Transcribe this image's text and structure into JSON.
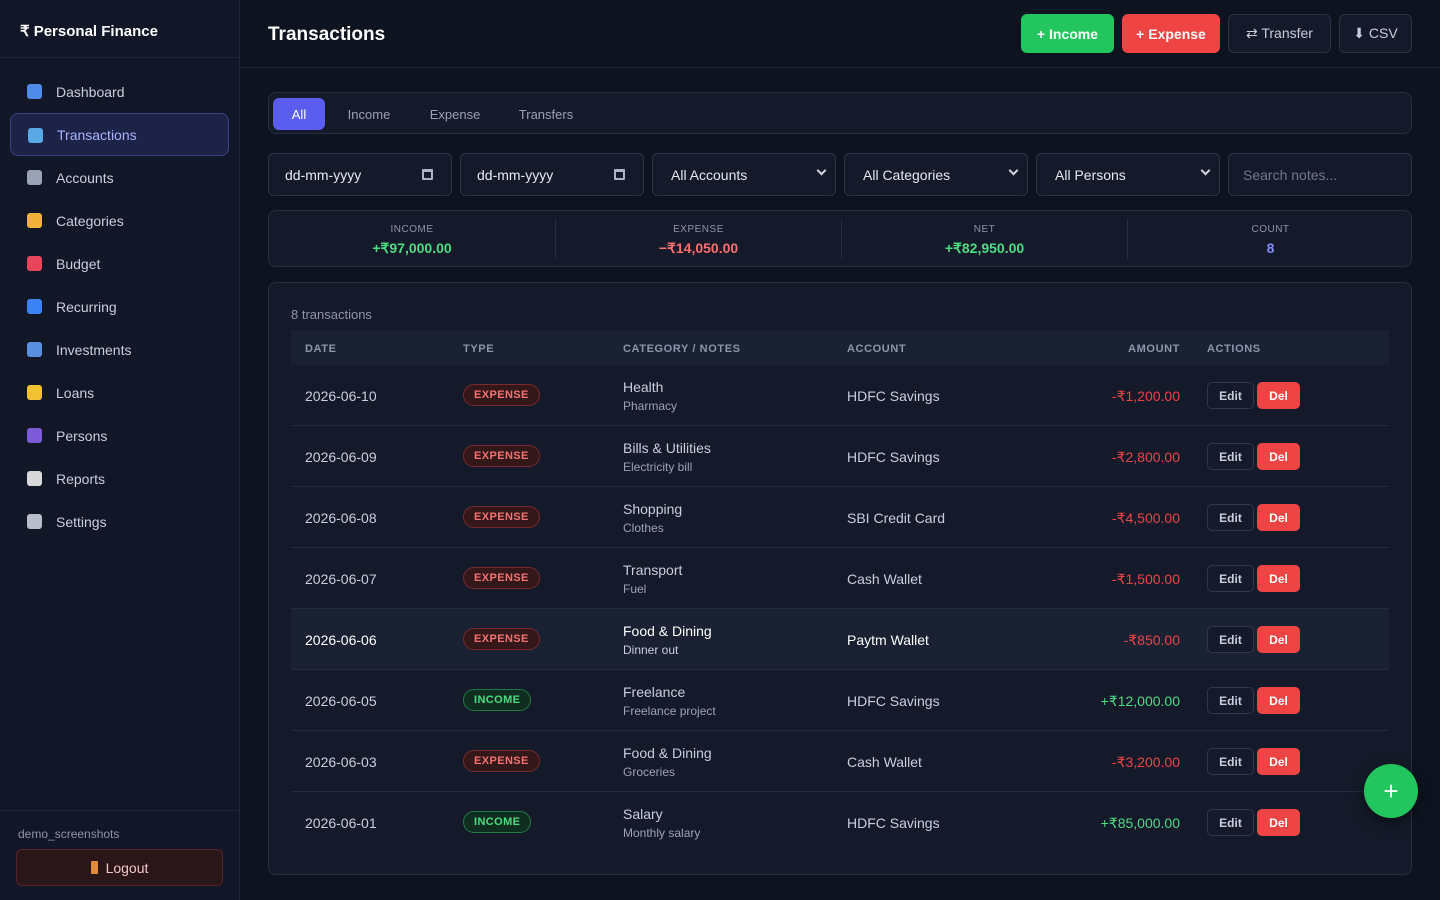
{
  "sidebar": {
    "brand": "₹ Personal Finance",
    "nav": [
      "Dashboard",
      "Transactions",
      "Accounts",
      "Categories",
      "Budget",
      "Recurring",
      "Investments",
      "Loans",
      "Persons",
      "Reports",
      "Settings"
    ],
    "active": 1,
    "user": "demo_screenshots",
    "logout": "Logout"
  },
  "header": {
    "title": "Transactions",
    "buttons": [
      "+ Income",
      "+ Expense",
      "⇄ Transfer",
      "⬇ CSV"
    ]
  },
  "tabs": {
    "items": [
      "All",
      "Income",
      "Expense",
      "Transfers"
    ],
    "active": 0
  },
  "filters": {
    "dates": [
      "dd-mm-yyyy",
      "dd-mm-yyyy"
    ],
    "selects": [
      "All Accounts",
      "All Categories",
      "All Persons"
    ],
    "search": "Search notes..."
  },
  "summary": [
    {
      "label": "INCOME",
      "value": "+₹97,000.00"
    },
    {
      "label": "EXPENSE",
      "value": "−₹14,050.00"
    },
    {
      "label": "NET",
      "value": "+₹82,950.00"
    },
    {
      "label": "COUNT",
      "value": "8"
    }
  ],
  "table": {
    "caption": "8 transactions",
    "columns": [
      "DATE",
      "TYPE",
      "CATEGORY / NOTES",
      "ACCOUNT",
      "AMOUNT",
      "ACTIONS"
    ],
    "rows": [
      {
        "date": "2026-06-10",
        "type": "EXPENSE",
        "category": "Health",
        "notes": "Pharmacy",
        "account": "HDFC Savings",
        "amount": "-₹1,200.00",
        "actions": [
          "Edit",
          "Del"
        ]
      },
      {
        "date": "2026-06-09",
        "type": "EXPENSE",
        "category": "Bills & Utilities",
        "notes": "Electricity bill",
        "account": "HDFC Savings",
        "amount": "-₹2,800.00",
        "actions": [
          "Edit",
          "Del"
        ]
      },
      {
        "date": "2026-06-08",
        "type": "EXPENSE",
        "category": "Shopping",
        "notes": "Clothes",
        "account": "SBI Credit Card",
        "amount": "-₹4,500.00",
        "actions": [
          "Edit",
          "Del"
        ]
      },
      {
        "date": "2026-06-07",
        "type": "EXPENSE",
        "category": "Transport",
        "notes": "Fuel",
        "account": "Cash Wallet",
        "amount": "-₹1,500.00",
        "actions": [
          "Edit",
          "Del"
        ]
      },
      {
        "date": "2026-06-06",
        "type": "EXPENSE",
        "category": "Food & Dining",
        "notes": "Dinner out",
        "account": "Paytm Wallet",
        "amount": "-₹850.00",
        "actions": [
          "Edit",
          "Del"
        ]
      },
      {
        "date": "2026-06-05",
        "type": "INCOME",
        "category": "Freelance",
        "notes": "Freelance project",
        "account": "HDFC Savings",
        "amount": "+₹12,000.00",
        "actions": [
          "Edit",
          "Del"
        ]
      },
      {
        "date": "2026-06-03",
        "type": "EXPENSE",
        "category": "Food & Dining",
        "notes": "Groceries",
        "account": "Cash Wallet",
        "amount": "-₹3,200.00",
        "actions": [
          "Edit",
          "Del"
        ]
      },
      {
        "date": "2026-06-01",
        "type": "INCOME",
        "category": "Salary",
        "notes": "Monthly salary",
        "account": "HDFC Savings",
        "amount": "+₹85,000.00",
        "actions": [
          "Edit",
          "Del"
        ]
      }
    ],
    "highlight": 4
  },
  "fab": "+"
}
